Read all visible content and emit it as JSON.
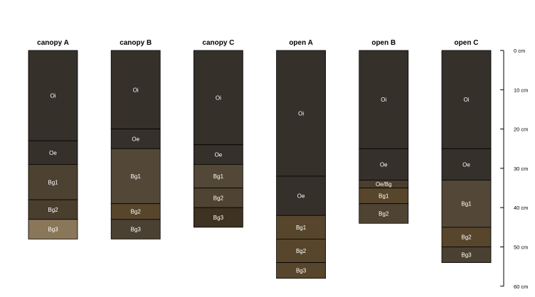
{
  "chart_data": {
    "type": "soil-profile",
    "depth_unit": "cm",
    "depth_range": [
      0,
      60
    ],
    "depth_ticks": [
      {
        "value": 0,
        "label": "0 cm"
      },
      {
        "value": 10,
        "label": "10 cm"
      },
      {
        "value": 20,
        "label": "20 cm"
      },
      {
        "value": 30,
        "label": "30 cm"
      },
      {
        "value": 40,
        "label": "40 cm"
      },
      {
        "value": 50,
        "label": "50 cm"
      },
      {
        "value": 60,
        "label": "60 cm"
      }
    ],
    "profiles": [
      {
        "name": "canopy A",
        "horizons": [
          {
            "name": "Oi",
            "top": 0,
            "bottom": 23,
            "color": "#36302b",
            "text_color": "#ffffff"
          },
          {
            "name": "Oe",
            "top": 23,
            "bottom": 29,
            "color": "#36302b",
            "text_color": "#ffffff"
          },
          {
            "name": "Bg1",
            "top": 29,
            "bottom": 38,
            "color": "#4d4131",
            "text_color": "#ffffff"
          },
          {
            "name": "Bg2",
            "top": 38,
            "bottom": 43,
            "color": "#4a3e2f",
            "text_color": "#ffffff"
          },
          {
            "name": "Bg3",
            "top": 43,
            "bottom": 48,
            "color": "#8a7658",
            "text_color": "#ffffff"
          }
        ]
      },
      {
        "name": "canopy B",
        "horizons": [
          {
            "name": "Oi",
            "top": 0,
            "bottom": 20,
            "color": "#36302b",
            "text_color": "#ffffff"
          },
          {
            "name": "Oe",
            "top": 20,
            "bottom": 25,
            "color": "#36302b",
            "text_color": "#ffffff"
          },
          {
            "name": "Bg1",
            "top": 25,
            "bottom": 39,
            "color": "#534838",
            "text_color": "#ffffff"
          },
          {
            "name": "Bg2",
            "top": 39,
            "bottom": 43,
            "color": "#57462c",
            "text_color": "#ffffff"
          },
          {
            "name": "Bg3",
            "top": 43,
            "bottom": 48,
            "color": "#4a4133",
            "text_color": "#ffffff"
          }
        ]
      },
      {
        "name": "canopy C",
        "horizons": [
          {
            "name": "Oi",
            "top": 0,
            "bottom": 24,
            "color": "#36302b",
            "text_color": "#ffffff"
          },
          {
            "name": "Oe",
            "top": 24,
            "bottom": 29,
            "color": "#36302b",
            "text_color": "#ffffff"
          },
          {
            "name": "Bg1",
            "top": 29,
            "bottom": 35,
            "color": "#534838",
            "text_color": "#ffffff"
          },
          {
            "name": "Bg2",
            "top": 35,
            "bottom": 40,
            "color": "#4f4333",
            "text_color": "#ffffff"
          },
          {
            "name": "Bg3",
            "top": 40,
            "bottom": 45,
            "color": "#3e3222",
            "text_color": "#ffffff"
          }
        ]
      },
      {
        "name": "open A",
        "horizons": [
          {
            "name": "Oi",
            "top": 0,
            "bottom": 32,
            "color": "#36302b",
            "text_color": "#ffffff"
          },
          {
            "name": "Oe",
            "top": 32,
            "bottom": 42,
            "color": "#36302b",
            "text_color": "#ffffff"
          },
          {
            "name": "Bg1",
            "top": 42,
            "bottom": 48,
            "color": "#57462c",
            "text_color": "#ffffff"
          },
          {
            "name": "Bg2",
            "top": 48,
            "bottom": 54,
            "color": "#57462c",
            "text_color": "#ffffff"
          },
          {
            "name": "Bg3",
            "top": 54,
            "bottom": 58,
            "color": "#57462c",
            "text_color": "#ffffff"
          }
        ]
      },
      {
        "name": "open B",
        "horizons": [
          {
            "name": "Oi",
            "top": 0,
            "bottom": 25,
            "color": "#36302b",
            "text_color": "#ffffff"
          },
          {
            "name": "Oe",
            "top": 25,
            "bottom": 33,
            "color": "#36302b",
            "text_color": "#ffffff"
          },
          {
            "name": "Oe/Bg",
            "top": 33,
            "bottom": 35,
            "color": "#4a3e2f",
            "text_color": "#ffffff"
          },
          {
            "name": "Bg1",
            "top": 35,
            "bottom": 39,
            "color": "#57462c",
            "text_color": "#ffffff"
          },
          {
            "name": "Bg2",
            "top": 39,
            "bottom": 44,
            "color": "#4f4333",
            "text_color": "#ffffff"
          }
        ]
      },
      {
        "name": "open C",
        "horizons": [
          {
            "name": "Oi",
            "top": 0,
            "bottom": 25,
            "color": "#36302b",
            "text_color": "#ffffff"
          },
          {
            "name": "Oe",
            "top": 25,
            "bottom": 33,
            "color": "#36302b",
            "text_color": "#ffffff"
          },
          {
            "name": "Bg1",
            "top": 33,
            "bottom": 45,
            "color": "#534838",
            "text_color": "#ffffff"
          },
          {
            "name": "Bg2",
            "top": 45,
            "bottom": 50,
            "color": "#57462c",
            "text_color": "#ffffff"
          },
          {
            "name": "Bg3",
            "top": 50,
            "bottom": 54,
            "color": "#4a4133",
            "text_color": "#ffffff"
          }
        ]
      }
    ]
  }
}
